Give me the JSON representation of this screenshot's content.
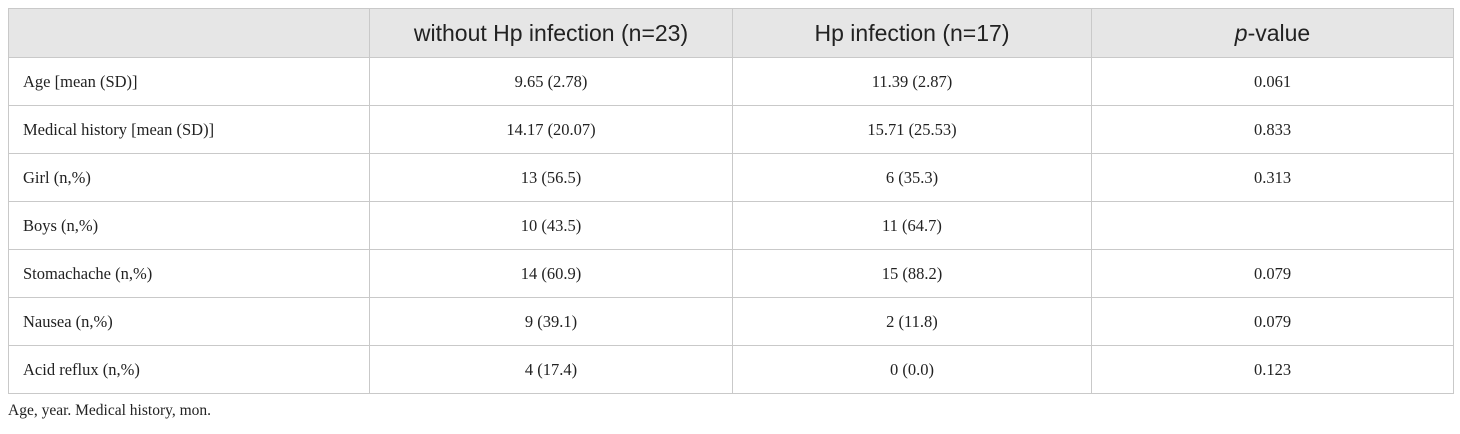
{
  "header": {
    "col0": "",
    "col1": "without Hp infection (n=23)",
    "col2": "Hp infection (n=17)",
    "col3_italic": "p",
    "col3_rest": "-value"
  },
  "rows": [
    {
      "label": "Age [mean (SD)]",
      "without": "9.65 (2.78)",
      "with": "11.39 (2.87)",
      "p": "0.061"
    },
    {
      "label": "Medical history [mean (SD)]",
      "without": "14.17 (20.07)",
      "with": "15.71 (25.53)",
      "p": "0.833"
    },
    {
      "label": "Girl (n,%)",
      "without": "13 (56.5)",
      "with": "6 (35.3)",
      "p": "0.313"
    },
    {
      "label": "Boys (n,%)",
      "without": "10 (43.5)",
      "with": "11 (64.7)",
      "p": ""
    },
    {
      "label": "Stomachache (n,%)",
      "without": "14 (60.9)",
      "with": "15 (88.2)",
      "p": "0.079"
    },
    {
      "label": "Nausea (n,%)",
      "without": "9 (39.1)",
      "with": "2 (11.8)",
      "p": "0.079"
    },
    {
      "label": "Acid reflux (n,%)",
      "without": "4 (17.4)",
      "with": "0 (0.0)",
      "p": "0.123"
    }
  ],
  "footnote": "Age, year. Medical history, mon."
}
